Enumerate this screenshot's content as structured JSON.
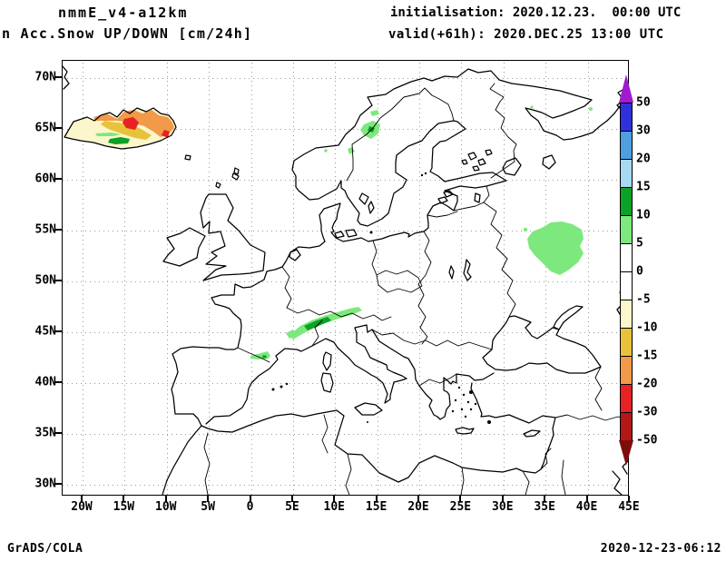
{
  "header": {
    "model_title": "nmmE_v4-a12km",
    "product_title": "n Acc.Snow UP/DOWN [cm/24h]",
    "init_line": "initialisation: 2020.12.23.  00:00 UTC",
    "valid_line": "valid(+61h): 2020.DEC.25 13:00 UTC"
  },
  "map": {
    "lat_labels": [
      "70N",
      "65N",
      "60N",
      "55N",
      "50N",
      "45N",
      "40N",
      "35N",
      "30N"
    ],
    "lon_labels": [
      "20W",
      "15W",
      "10W",
      "5W",
      "0",
      "5E",
      "10E",
      "15E",
      "20E",
      "25E",
      "30E",
      "35E",
      "40E",
      "45E"
    ]
  },
  "colorbar": {
    "tick_labels": [
      "50",
      "30",
      "20",
      "15",
      "10",
      "5",
      "0",
      "-5",
      "-10",
      "-15",
      "-20",
      "-30",
      "-50"
    ],
    "top_arrow_color": "#a01ad0",
    "bottom_arrow_color": "#7d0d0d",
    "segment_colors": [
      "#3030dd",
      "#4f9fe0",
      "#a8d9f2",
      "#0ca127",
      "#7de87d",
      "#ffffff",
      "#ffffff",
      "#fbf6cb",
      "#e9c23b",
      "#f2994a",
      "#e62222",
      "#b51717"
    ]
  },
  "footer": {
    "credit": "GrADS/COLA",
    "timestamp": "2020-12-23-06:12"
  },
  "chart_data": {
    "type": "heatmap",
    "title": "Acc.Snow UP/DOWN [cm/24h]",
    "model": "nmmE_v4-a12km",
    "initialisation": "2020.12.23. 00:00 UTC",
    "valid": "2020.DEC.25 13:00 UTC (+61h)",
    "units": "cm/24h",
    "lat_range": [
      "30N",
      "70N"
    ],
    "lon_range": [
      "20W",
      "45E"
    ],
    "scale_breaks": [
      50,
      30,
      20,
      15,
      10,
      5,
      0,
      -5,
      -10,
      -15,
      -20,
      -30,
      -50
    ],
    "legend_position": "right",
    "grid": true,
    "regions": [
      {
        "area": "Iceland",
        "value_cm": "-5 to -30 (decrease), local spots +5 to +15 and -20 to -30"
      },
      {
        "area": "Northern Scandinavia (Norway/Sweden border)",
        "value_cm": "+5 to +15"
      },
      {
        "area": "Western Russia (~55N, 35-40E)",
        "value_cm": "+5 to +10"
      },
      {
        "area": "Alps (Switzerland/Austria)",
        "value_cm": "+5 to +15"
      },
      {
        "area": "Pyrenees",
        "value_cm": "+5 to +10"
      },
      {
        "area": "Rest of domain",
        "value_cm": "0 to 5"
      }
    ]
  }
}
